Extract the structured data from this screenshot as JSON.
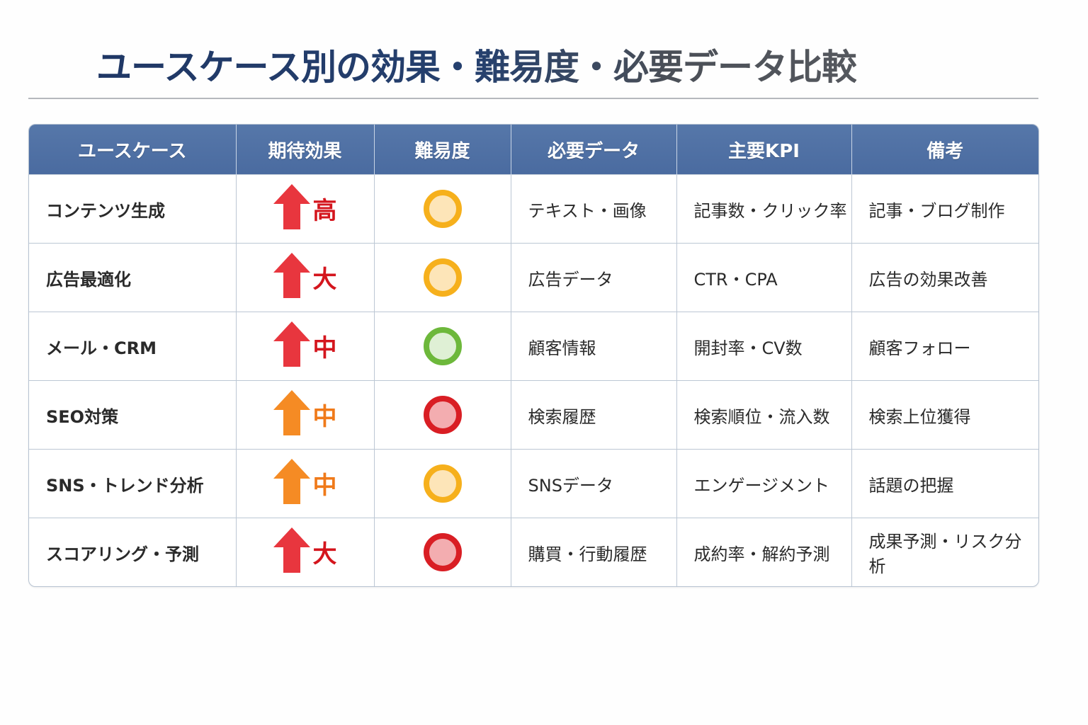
{
  "page": {
    "title": "ユースケース別の効果・難易度・必要データ比較"
  },
  "colors": {
    "title_start": "#1f3765",
    "title_end": "#55585e",
    "header_bg": "#4f70a5",
    "effect_red": "#e8363e",
    "effect_red_text": "#d4151d",
    "effect_orange": "#f58b24",
    "effect_orange_text": "#f07a1a",
    "diff_yellow_ring": "#f6b01c",
    "diff_yellow_fill": "#fde5b8",
    "diff_green_ring": "#6db83b",
    "diff_green_fill": "#dff0d5",
    "diff_red_ring": "#d91e24",
    "diff_red_fill": "#f3adb0"
  },
  "table": {
    "headers": [
      "ユースケース",
      "期待効果",
      "難易度",
      "必要データ",
      "主要KPI",
      "備考"
    ],
    "rows": [
      {
        "usecase": "コンテンツ生成",
        "effect": {
          "icon": "arrow-up-icon",
          "color": "red",
          "label": "高"
        },
        "difficulty": {
          "icon": "circle-yellow-icon",
          "level": "yellow"
        },
        "data": "テキスト・画像",
        "kpi": "記事数・クリック率",
        "note": "記事・ブログ制作"
      },
      {
        "usecase": "広告最適化",
        "effect": {
          "icon": "arrow-up-icon",
          "color": "red",
          "label": "大"
        },
        "difficulty": {
          "icon": "circle-yellow-icon",
          "level": "yellow"
        },
        "data": "広告データ",
        "kpi": "CTR・CPA",
        "note": "広告の効果改善"
      },
      {
        "usecase": "メール・CRM",
        "effect": {
          "icon": "arrow-up-icon",
          "color": "red",
          "label": "中"
        },
        "difficulty": {
          "icon": "circle-green-icon",
          "level": "green"
        },
        "data": "顧客情報",
        "kpi": "開封率・CV数",
        "note": "顧客フォロー"
      },
      {
        "usecase": "SEO対策",
        "effect": {
          "icon": "arrow-up-icon",
          "color": "orange",
          "label": "中"
        },
        "difficulty": {
          "icon": "circle-red-icon",
          "level": "red"
        },
        "data": "検索履歴",
        "kpi": "検索順位・流入数",
        "note": "検索上位獲得"
      },
      {
        "usecase": "SNS・トレンド分析",
        "effect": {
          "icon": "arrow-up-icon",
          "color": "orange",
          "label": "中"
        },
        "difficulty": {
          "icon": "circle-yellow-icon",
          "level": "yellow"
        },
        "data": "SNSデータ",
        "kpi": "エンゲージメント",
        "note": "話題の把握"
      },
      {
        "usecase": "スコアリング・予測",
        "effect": {
          "icon": "arrow-up-icon",
          "color": "red",
          "label": "大"
        },
        "difficulty": {
          "icon": "circle-red-icon",
          "level": "red"
        },
        "data": "購買・行動履歴",
        "kpi": "成約率・解約予測",
        "note": "成果予測・リスク分析"
      }
    ]
  }
}
